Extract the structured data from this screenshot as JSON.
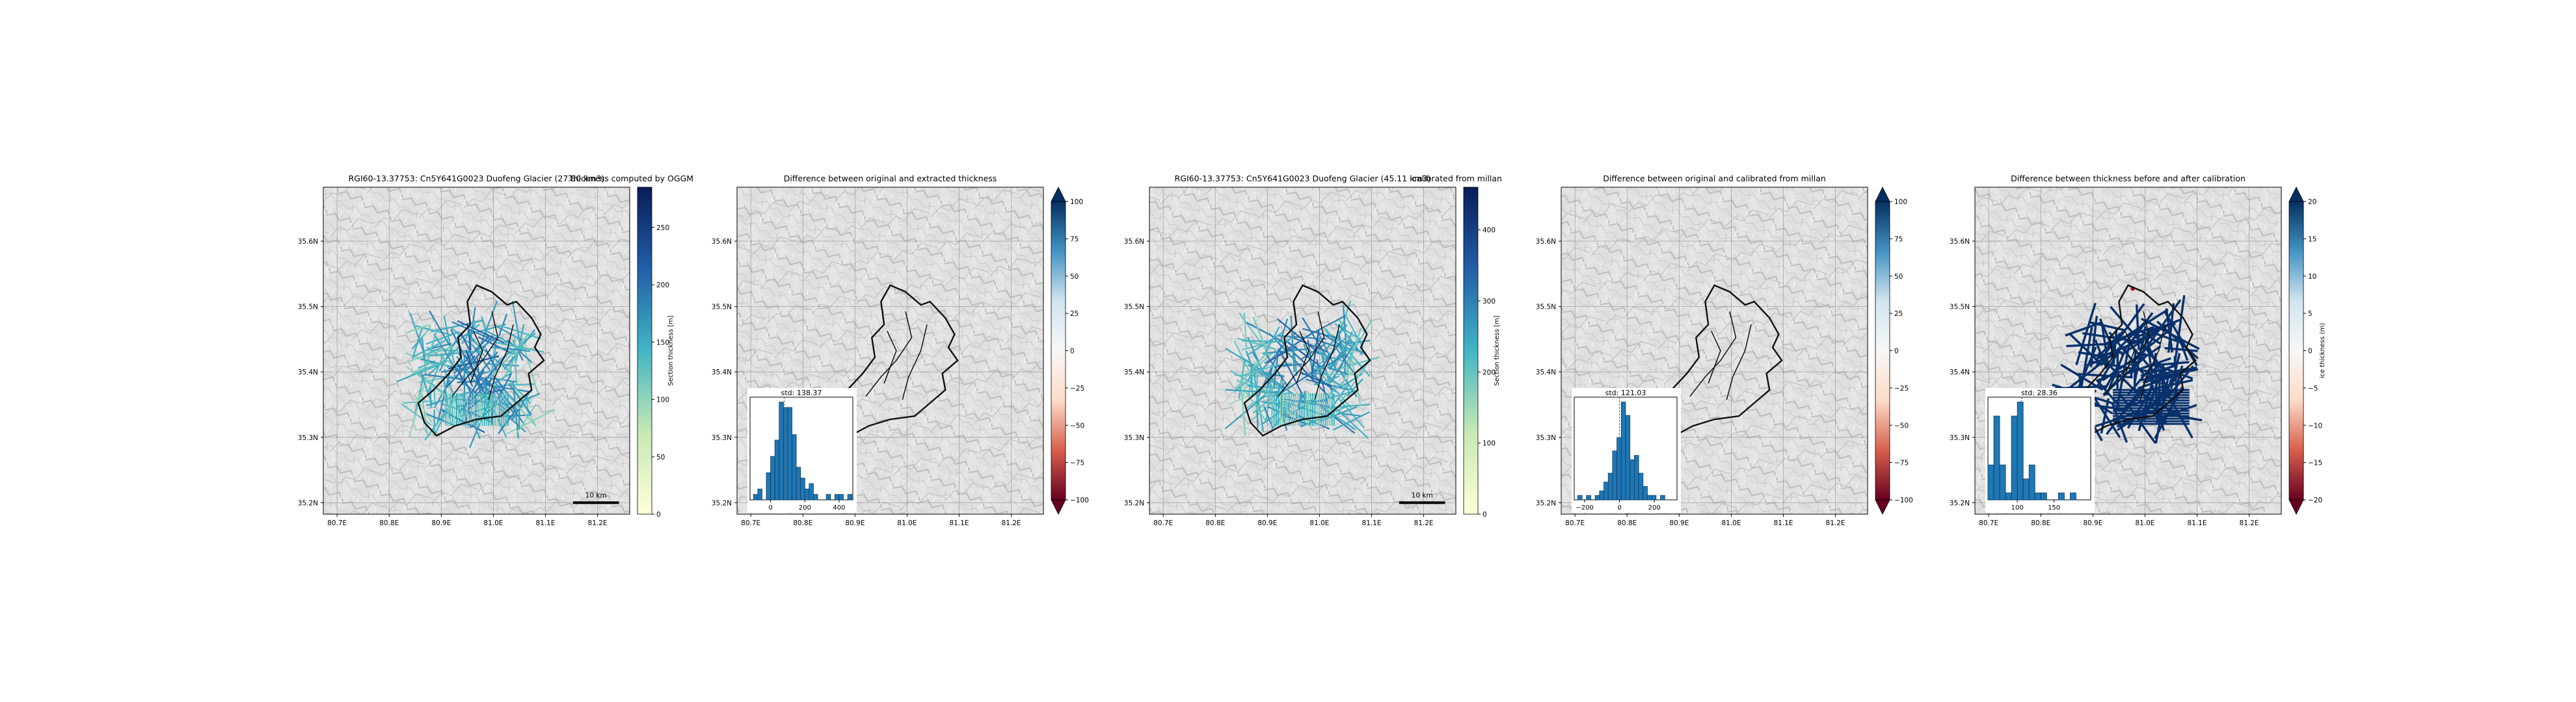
{
  "chart_data": [
    {
      "type": "map",
      "title": "RGI60-13.37753: Cn5Y641G0023 Duofeng Glacier (27.80 km3)",
      "title_right": "Thickness computed by OGGM",
      "lon_ticks": [
        "80.7E",
        "80.8E",
        "80.9E",
        "81.0E",
        "81.1E",
        "81.2E"
      ],
      "lat_ticks": [
        "35.6N",
        "35.5N",
        "35.4N",
        "35.3N",
        "35.2N"
      ],
      "scalebar_label": "10 km",
      "colorbar": {
        "label": "Section thickness [m]",
        "cmap": [
          "#ffffd9",
          "#c7e9b4",
          "#41b6c4",
          "#225ea8",
          "#081d58"
        ],
        "ticks": [
          "0",
          "50",
          "100",
          "150",
          "200",
          "250"
        ],
        "tick_values": [
          0,
          50,
          100,
          150,
          200,
          250
        ],
        "range": [
          0,
          285
        ],
        "extend": "neither"
      },
      "overlay": "thickness_lines",
      "scalebar": true
    },
    {
      "type": "map",
      "title": "Difference between original and extracted thickness",
      "lon_ticks": [
        "80.7E",
        "80.8E",
        "80.9E",
        "81.0E",
        "81.1E",
        "81.2E"
      ],
      "lat_ticks": [
        "35.6N",
        "35.5N",
        "35.4N",
        "35.3N",
        "35.2N"
      ],
      "colorbar": {
        "label": "",
        "cmap": [
          "#67001f",
          "#d6604d",
          "#fddbc7",
          "#f7f7f7",
          "#d1e5f0",
          "#4393c3",
          "#053061"
        ],
        "ticks": [
          "100",
          "75",
          "50",
          "25",
          "0",
          "−25",
          "−50",
          "−75",
          "−100"
        ],
        "tick_values": [
          100,
          75,
          50,
          25,
          0,
          -25,
          -50,
          -75,
          -100
        ],
        "range": [
          -100,
          100
        ],
        "extend": "both"
      },
      "overlay": "outline_only",
      "histogram": {
        "title": "std: 138.37",
        "xticks": [
          "0",
          "200",
          "400"
        ],
        "xtick_values": [
          0,
          200,
          400
        ],
        "xlim": [
          -120,
          480
        ],
        "bins_start": -100,
        "bin_width": 25,
        "counts": [
          1,
          2,
          0,
          5,
          8,
          11,
          18,
          17,
          17,
          12,
          6,
          4,
          2,
          3,
          1,
          0,
          0,
          1,
          0,
          1,
          1,
          0,
          1
        ],
        "vline": 80
      }
    },
    {
      "type": "map",
      "title": "RGI60-13.37753: Cn5Y641G0023 Duofeng Glacier (45.11 km3)",
      "title_right": "calibrated from millan",
      "lon_ticks": [
        "80.7E",
        "80.8E",
        "80.9E",
        "81.0E",
        "81.1E",
        "81.2E"
      ],
      "lat_ticks": [
        "35.6N",
        "35.5N",
        "35.4N",
        "35.3N",
        "35.2N"
      ],
      "scalebar_label": "10 km",
      "colorbar": {
        "label": "Section thickness [m]",
        "cmap": [
          "#ffffd9",
          "#c7e9b4",
          "#41b6c4",
          "#225ea8",
          "#081d58"
        ],
        "ticks": [
          "0",
          "100",
          "200",
          "300",
          "400"
        ],
        "tick_values": [
          0,
          100,
          200,
          300,
          400
        ],
        "range": [
          0,
          460
        ],
        "extend": "neither"
      },
      "overlay": "thickness_lines",
      "scalebar": true
    },
    {
      "type": "map",
      "title": "Difference between original and calibrated from millan",
      "lon_ticks": [
        "80.7E",
        "80.8E",
        "80.9E",
        "81.0E",
        "81.1E",
        "81.2E"
      ],
      "lat_ticks": [
        "35.6N",
        "35.5N",
        "35.4N",
        "35.3N",
        "35.2N"
      ],
      "colorbar": {
        "label": "",
        "cmap": [
          "#67001f",
          "#d6604d",
          "#fddbc7",
          "#f7f7f7",
          "#d1e5f0",
          "#4393c3",
          "#053061"
        ],
        "ticks": [
          "100",
          "75",
          "50",
          "25",
          "0",
          "−25",
          "−50",
          "−75",
          "−100"
        ],
        "tick_values": [
          100,
          75,
          50,
          25,
          0,
          -25,
          -50,
          -75,
          -100
        ],
        "range": [
          -100,
          100
        ],
        "extend": "both"
      },
      "overlay": "outline_only",
      "histogram": {
        "title": "std: 121.03",
        "xticks": [
          "−200",
          "0",
          "200"
        ],
        "xtick_values": [
          -200,
          0,
          200
        ],
        "xlim": [
          -260,
          330
        ],
        "bins_start": -240,
        "bin_width": 25,
        "counts": [
          1,
          0,
          1,
          0,
          1,
          2,
          4,
          6,
          11,
          14,
          22,
          19,
          9,
          10,
          6,
          3,
          1,
          1,
          0,
          1
        ],
        "vline": 0
      }
    },
    {
      "type": "map",
      "title": "Difference between thickness before and after calibration",
      "lon_ticks": [
        "80.7E",
        "80.8E",
        "80.9E",
        "81.0E",
        "81.1E",
        "81.2E"
      ],
      "lat_ticks": [
        "35.6N",
        "35.5N",
        "35.4N",
        "35.3N",
        "35.2N"
      ],
      "colorbar": {
        "label": "ice thickness (m)",
        "cmap": [
          "#67001f",
          "#d6604d",
          "#fddbc7",
          "#f7f7f7",
          "#d1e5f0",
          "#4393c3",
          "#053061"
        ],
        "ticks": [
          "20",
          "15",
          "10",
          "5",
          "0",
          "−5",
          "−10",
          "−15",
          "−20"
        ],
        "tick_values": [
          20,
          15,
          10,
          5,
          0,
          -5,
          -10,
          -15,
          -20
        ],
        "range": [
          -20,
          20
        ],
        "extend": "both"
      },
      "overlay": "dense_lines",
      "histogram": {
        "title": "std: 28.36",
        "xticks": [
          "100",
          "150"
        ],
        "xtick_values": [
          100,
          150
        ],
        "xlim": [
          60,
          200
        ],
        "bins_start": 60,
        "bin_width": 8,
        "counts": [
          5,
          12,
          5,
          1,
          12,
          14,
          3,
          5,
          1,
          1,
          0,
          0,
          1,
          0,
          1
        ],
        "vline": 106
      }
    }
  ]
}
